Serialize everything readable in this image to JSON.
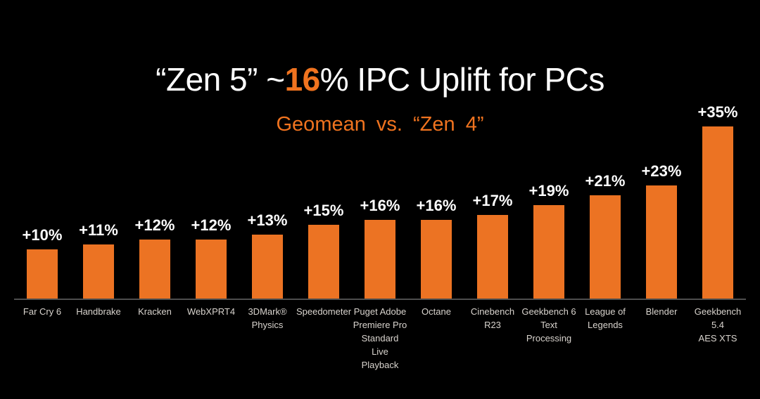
{
  "title": {
    "prefix": "“Zen 5” ~",
    "accent": "16",
    "suffix": "% IPC Uplift for PCs"
  },
  "subtitle": "Geomean vs. “Zen 4”",
  "chart_data": {
    "type": "bar",
    "title": "“Zen 5” ~16% IPC Uplift for PCs",
    "subtitle": "Geomean vs. “Zen 4”",
    "categories": [
      "Far Cry 6",
      "Handbrake",
      "Kracken",
      "WebXPRT4",
      "3DMark®\nPhysics",
      "Speedometer",
      "Puget Adobe\nPremiere Pro\nStandard Live\nPlayback",
      "Octane",
      "Cinebench R23",
      "Geekbench 6\nText Processing",
      "League of\nLegends",
      "Blender",
      "Geekbench 5.4\nAES XTS"
    ],
    "values": [
      10,
      11,
      12,
      12,
      13,
      15,
      16,
      16,
      17,
      19,
      21,
      23,
      35
    ],
    "value_labels": [
      "+10%",
      "+11%",
      "+12%",
      "+12%",
      "+13%",
      "+15%",
      "+16%",
      "+16%",
      "+17%",
      "+19%",
      "+21%",
      "+23%",
      "+35%"
    ],
    "unit": "percent IPC uplift vs Zen 4",
    "bar_color": "#EC7323",
    "accent_color": "#F0731F",
    "background": "#000000",
    "axis_line_color": "#4E4E4E",
    "ylim": [
      0,
      35
    ],
    "grid": false,
    "legend": false
  }
}
